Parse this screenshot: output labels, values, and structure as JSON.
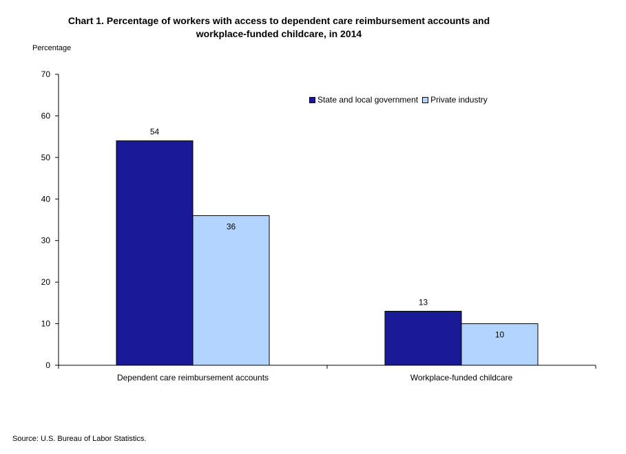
{
  "chart_data": {
    "type": "bar",
    "title_line1": "Chart 1. Percentage of workers with access to dependent care reimbursement accounts and",
    "title_line2": "workplace-funded childcare, in 2014",
    "ylabel": "Percentage",
    "xlabel": "",
    "categories": [
      "Dependent care reimbursement accounts",
      "Workplace-funded childcare"
    ],
    "series": [
      {
        "name": "State and local government",
        "values": [
          54,
          13
        ],
        "color": "#1A1A99"
      },
      {
        "name": "Private industry",
        "values": [
          36,
          10
        ],
        "color": "#B3D4FF"
      }
    ],
    "ylim": [
      0,
      70
    ],
    "yticks": [
      0,
      10,
      20,
      30,
      40,
      50,
      60,
      70
    ],
    "grid": false,
    "legend_position": "top-right",
    "source": "Source: U.S. Bureau of Labor Statistics."
  }
}
